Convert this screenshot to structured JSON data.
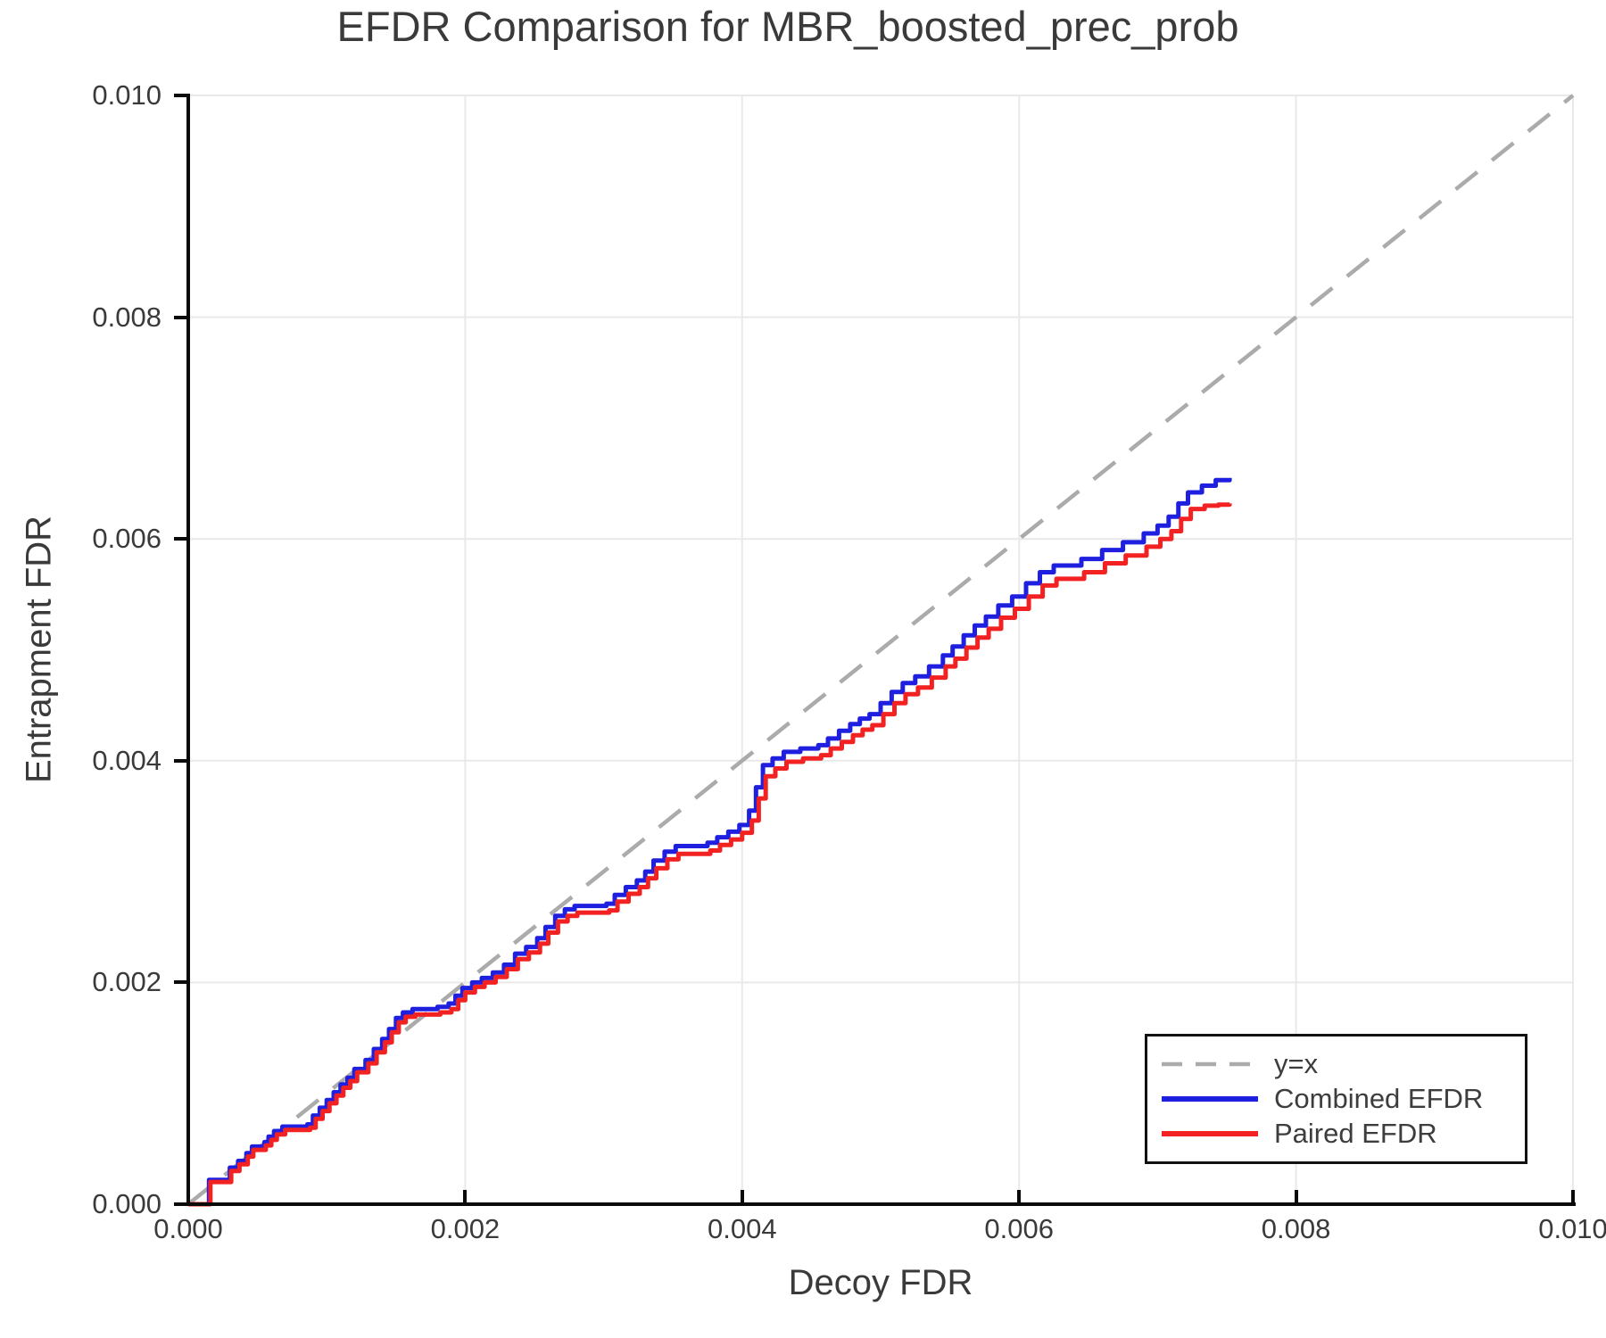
{
  "title": "EFDR Comparison for MBR_boosted_prec_prob",
  "axes": {
    "xlabel": "Decoy FDR",
    "ylabel": "Entrapment FDR",
    "x_ticks": [
      "0.000",
      "0.002",
      "0.004",
      "0.006",
      "0.008",
      "0.010"
    ],
    "y_ticks": [
      "0.000",
      "0.002",
      "0.004",
      "0.006",
      "0.008",
      "0.010"
    ]
  },
  "legend": {
    "items": [
      {
        "label": "y=x",
        "color": "#ababab",
        "dashed": true
      },
      {
        "label": "Combined EFDR",
        "color": "#1f1fe0",
        "dashed": false
      },
      {
        "label": "Paired EFDR",
        "color": "#f32222",
        "dashed": false
      }
    ]
  },
  "style": {
    "grid_color": "#e9e9e9",
    "spine_color": "#0a0a0a",
    "text_color": "#3a3a3a",
    "identity_color": "#ababab",
    "combined_color": "#1f1fe0",
    "paired_color": "#f32222",
    "background": "#ffffff"
  },
  "chart_data": {
    "type": "line",
    "title": "EFDR Comparison for MBR_boosted_prec_prob",
    "xlabel": "Decoy FDR",
    "ylabel": "Entrapment FDR",
    "xlim": [
      0,
      0.01
    ],
    "ylim": [
      0,
      0.01
    ],
    "grid": true,
    "legend_position": "lower right",
    "series": [
      {
        "name": "y=x",
        "style": "dashed",
        "color": "#ababab",
        "step": false,
        "points": [
          [
            0,
            0
          ],
          [
            0.01,
            0.01
          ]
        ]
      },
      {
        "name": "Combined EFDR",
        "style": "solid",
        "color": "#1f1fe0",
        "step": "post",
        "points": [
          [
            0,
            0
          ],
          [
            0.00015,
            0.00022
          ],
          [
            0.0003,
            0.00033
          ],
          [
            0.00036,
            0.00039
          ],
          [
            0.00042,
            0.00046
          ],
          [
            0.00046,
            0.00052
          ],
          [
            0.00055,
            0.00056
          ],
          [
            0.00058,
            0.00061
          ],
          [
            0.00062,
            0.00066
          ],
          [
            0.00068,
            0.0007
          ],
          [
            0.00086,
            0.00072
          ],
          [
            0.0009,
            0.0008
          ],
          [
            0.00095,
            0.00087
          ],
          [
            0.001,
            0.00094
          ],
          [
            0.00105,
            0.00101
          ],
          [
            0.0011,
            0.00108
          ],
          [
            0.00115,
            0.00114
          ],
          [
            0.0012,
            0.00122
          ],
          [
            0.00128,
            0.0013
          ],
          [
            0.00134,
            0.0014
          ],
          [
            0.0014,
            0.00149
          ],
          [
            0.00145,
            0.00158
          ],
          [
            0.0015,
            0.00168
          ],
          [
            0.00155,
            0.00173
          ],
          [
            0.00162,
            0.00176
          ],
          [
            0.0018,
            0.00178
          ],
          [
            0.00188,
            0.00181
          ],
          [
            0.00193,
            0.00188
          ],
          [
            0.00198,
            0.00195
          ],
          [
            0.00205,
            0.002
          ],
          [
            0.00212,
            0.00204
          ],
          [
            0.0022,
            0.00209
          ],
          [
            0.00228,
            0.00216
          ],
          [
            0.00236,
            0.00226
          ],
          [
            0.00244,
            0.00232
          ],
          [
            0.00252,
            0.0024
          ],
          [
            0.00258,
            0.0025
          ],
          [
            0.00265,
            0.0026
          ],
          [
            0.00272,
            0.00266
          ],
          [
            0.00279,
            0.00269
          ],
          [
            0.00302,
            0.00271
          ],
          [
            0.00308,
            0.00279
          ],
          [
            0.00316,
            0.00286
          ],
          [
            0.00324,
            0.00292
          ],
          [
            0.0033,
            0.003
          ],
          [
            0.00336,
            0.0031
          ],
          [
            0.00344,
            0.00318
          ],
          [
            0.00352,
            0.00323
          ],
          [
            0.00375,
            0.00326
          ],
          [
            0.00382,
            0.00331
          ],
          [
            0.0039,
            0.00336
          ],
          [
            0.00398,
            0.00342
          ],
          [
            0.00405,
            0.00355
          ],
          [
            0.0041,
            0.00376
          ],
          [
            0.00415,
            0.00396
          ],
          [
            0.00422,
            0.00402
          ],
          [
            0.0043,
            0.00408
          ],
          [
            0.00442,
            0.00411
          ],
          [
            0.00455,
            0.00414
          ],
          [
            0.00462,
            0.0042
          ],
          [
            0.0047,
            0.00427
          ],
          [
            0.00478,
            0.00433
          ],
          [
            0.00485,
            0.00438
          ],
          [
            0.00492,
            0.00442
          ],
          [
            0.005,
            0.00452
          ],
          [
            0.00508,
            0.00462
          ],
          [
            0.00516,
            0.0047
          ],
          [
            0.00525,
            0.00476
          ],
          [
            0.00535,
            0.00485
          ],
          [
            0.00545,
            0.00495
          ],
          [
            0.00552,
            0.00503
          ],
          [
            0.0056,
            0.00513
          ],
          [
            0.00568,
            0.00522
          ],
          [
            0.00576,
            0.0053
          ],
          [
            0.00585,
            0.0054
          ],
          [
            0.00595,
            0.00548
          ],
          [
            0.00605,
            0.0056
          ],
          [
            0.00615,
            0.0057
          ],
          [
            0.00625,
            0.00576
          ],
          [
            0.00645,
            0.00582
          ],
          [
            0.0066,
            0.0059
          ],
          [
            0.00675,
            0.00597
          ],
          [
            0.0069,
            0.00605
          ],
          [
            0.007,
            0.00612
          ],
          [
            0.00708,
            0.0062
          ],
          [
            0.00715,
            0.00632
          ],
          [
            0.00722,
            0.00642
          ],
          [
            0.00732,
            0.00648
          ],
          [
            0.00742,
            0.00653
          ],
          [
            0.00752,
            0.00655
          ]
        ]
      },
      {
        "name": "Paired EFDR",
        "style": "solid",
        "color": "#f32222",
        "step": "post",
        "points": [
          [
            0,
            0
          ],
          [
            0.00016,
            0.0002
          ],
          [
            0.00031,
            0.0003
          ],
          [
            0.00037,
            0.00036
          ],
          [
            0.00043,
            0.00043
          ],
          [
            0.00047,
            0.00049
          ],
          [
            0.00056,
            0.00053
          ],
          [
            0.0006,
            0.00058
          ],
          [
            0.00064,
            0.00063
          ],
          [
            0.0007,
            0.00067
          ],
          [
            0.00088,
            0.00069
          ],
          [
            0.00092,
            0.00077
          ],
          [
            0.00097,
            0.00084
          ],
          [
            0.00102,
            0.00091
          ],
          [
            0.00107,
            0.00098
          ],
          [
            0.00112,
            0.00105
          ],
          [
            0.00117,
            0.00111
          ],
          [
            0.00122,
            0.00119
          ],
          [
            0.0013,
            0.00127
          ],
          [
            0.00136,
            0.00137
          ],
          [
            0.00142,
            0.00146
          ],
          [
            0.00147,
            0.00155
          ],
          [
            0.00152,
            0.00164
          ],
          [
            0.00157,
            0.00169
          ],
          [
            0.00164,
            0.00171
          ],
          [
            0.00182,
            0.00173
          ],
          [
            0.0019,
            0.00176
          ],
          [
            0.00195,
            0.00184
          ],
          [
            0.002,
            0.00191
          ],
          [
            0.00207,
            0.00196
          ],
          [
            0.00214,
            0.002
          ],
          [
            0.00222,
            0.00205
          ],
          [
            0.0023,
            0.00212
          ],
          [
            0.00238,
            0.00221
          ],
          [
            0.00246,
            0.00227
          ],
          [
            0.00254,
            0.00235
          ],
          [
            0.0026,
            0.00245
          ],
          [
            0.00267,
            0.00255
          ],
          [
            0.00274,
            0.0026
          ],
          [
            0.00281,
            0.00263
          ],
          [
            0.00304,
            0.00265
          ],
          [
            0.0031,
            0.00273
          ],
          [
            0.00318,
            0.0028
          ],
          [
            0.00326,
            0.00286
          ],
          [
            0.00332,
            0.00294
          ],
          [
            0.00338,
            0.00303
          ],
          [
            0.00346,
            0.00311
          ],
          [
            0.00354,
            0.00316
          ],
          [
            0.00377,
            0.00319
          ],
          [
            0.00384,
            0.00324
          ],
          [
            0.00392,
            0.00329
          ],
          [
            0.004,
            0.00335
          ],
          [
            0.00407,
            0.00346
          ],
          [
            0.00412,
            0.00366
          ],
          [
            0.00417,
            0.00386
          ],
          [
            0.00424,
            0.00393
          ],
          [
            0.00432,
            0.00399
          ],
          [
            0.00444,
            0.00402
          ],
          [
            0.00457,
            0.00405
          ],
          [
            0.00464,
            0.00411
          ],
          [
            0.00472,
            0.00417
          ],
          [
            0.0048,
            0.00423
          ],
          [
            0.00487,
            0.00428
          ],
          [
            0.00494,
            0.00432
          ],
          [
            0.00502,
            0.00442
          ],
          [
            0.0051,
            0.00452
          ],
          [
            0.00518,
            0.0046
          ],
          [
            0.00527,
            0.00466
          ],
          [
            0.00537,
            0.00475
          ],
          [
            0.00547,
            0.00485
          ],
          [
            0.00554,
            0.00492
          ],
          [
            0.00562,
            0.00502
          ],
          [
            0.0057,
            0.00511
          ],
          [
            0.00578,
            0.00519
          ],
          [
            0.00587,
            0.00529
          ],
          [
            0.00597,
            0.00537
          ],
          [
            0.00607,
            0.00548
          ],
          [
            0.00617,
            0.00558
          ],
          [
            0.00627,
            0.00564
          ],
          [
            0.00647,
            0.0057
          ],
          [
            0.00662,
            0.00578
          ],
          [
            0.00677,
            0.00585
          ],
          [
            0.00692,
            0.00593
          ],
          [
            0.00702,
            0.006
          ],
          [
            0.0071,
            0.00607
          ],
          [
            0.00717,
            0.00618
          ],
          [
            0.00724,
            0.00627
          ],
          [
            0.00734,
            0.0063
          ],
          [
            0.00744,
            0.00631
          ],
          [
            0.00752,
            0.00632
          ]
        ]
      }
    ]
  }
}
